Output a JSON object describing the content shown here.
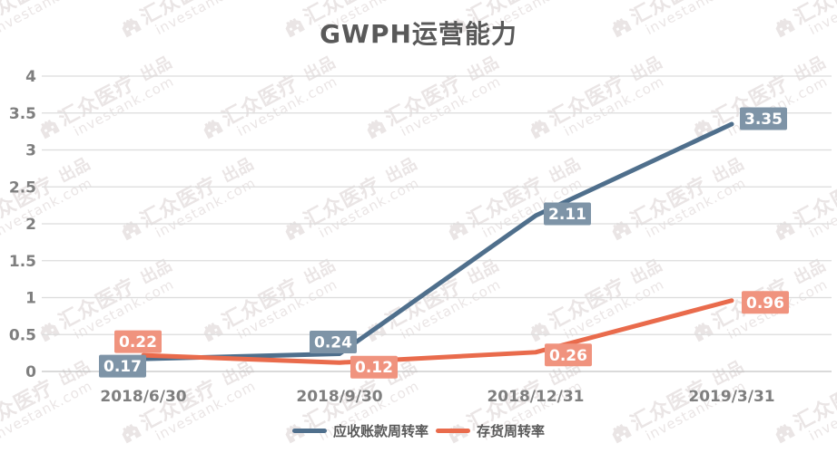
{
  "title": "GWPH运营能力",
  "watermark": {
    "brand": "汇众医疗",
    "suffix": "出品",
    "site": "investank.com"
  },
  "chart_data": {
    "type": "line",
    "title": "GWPH运营能力",
    "categories": [
      "2018/6/30",
      "2018/9/30",
      "2018/12/31",
      "2019/3/31"
    ],
    "series": [
      {
        "name": "应收账款周转率",
        "values": [
          0.17,
          0.24,
          2.11,
          3.35
        ],
        "labels": [
          "0.17",
          "0.24",
          "2.11",
          "3.35"
        ],
        "color": "#4F6F8C",
        "label_bg": "#7E94A7"
      },
      {
        "name": "存货周转率",
        "values": [
          0.22,
          0.12,
          0.26,
          0.96
        ],
        "labels": [
          "0.22",
          "0.12",
          "0.26",
          "0.96"
        ],
        "color": "#E96B4C",
        "label_bg": "#F0937E"
      }
    ],
    "xlabel": "",
    "ylabel": "",
    "ylim": [
      0,
      4
    ],
    "ytick_labels": [
      "0",
      "0.5",
      "1",
      "1.5",
      "2",
      "2.5",
      "3",
      "3.5",
      "4"
    ],
    "grid": true,
    "data_labels": true,
    "legend_position": "bottom",
    "axis_text_color": "#7F7F7F",
    "grid_color": "#DCDCDC",
    "baseline_color": "#C3C3C3",
    "label_text_color": "#FFFFFF"
  }
}
